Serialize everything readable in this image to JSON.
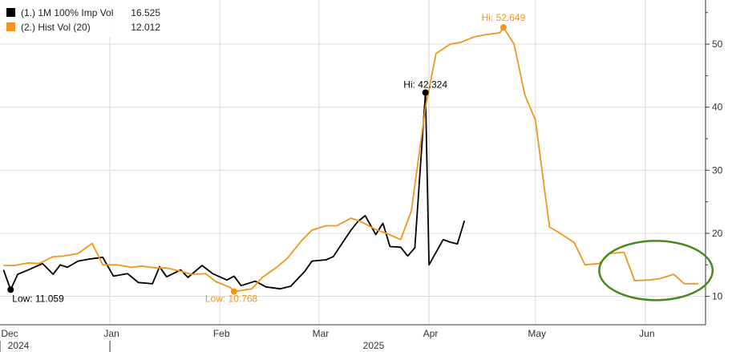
{
  "chart_data": {
    "type": "line",
    "colors": {
      "imp_vol": "#000000",
      "hist_vol": "#f0961e",
      "highlight": "#4a8a1c",
      "grid": "#d8d8d8"
    },
    "legend": {
      "placement": "top-left",
      "entries": [
        {
          "label": "(1.) 1M 100% Imp Vol",
          "value": "16.525",
          "color": "#000000"
        },
        {
          "label": "(2.) Hist Vol (20)",
          "value": "12.012",
          "color": "#f0961e"
        }
      ]
    },
    "ylim": [
      5.5,
      57
    ],
    "yticks": [
      10,
      20,
      30,
      40,
      50
    ],
    "ytick_labels": [
      "10",
      "20",
      "30",
      "40",
      "50"
    ],
    "xlim": [
      "2024-12-01",
      "2025-06-18"
    ],
    "months": [
      {
        "label": "Dec",
        "date": "2024-12-01"
      },
      {
        "label": "Jan",
        "date": "2025-01-01"
      },
      {
        "label": "Feb",
        "date": "2025-02-01"
      },
      {
        "label": "Mar",
        "date": "2025-03-01"
      },
      {
        "label": "Apr",
        "date": "2025-04-01"
      },
      {
        "label": "May",
        "date": "2025-05-01"
      },
      {
        "label": "Jun",
        "date": "2025-06-01"
      }
    ],
    "years": [
      {
        "label": "2024",
        "date": "2024-12-01"
      },
      {
        "label": "2025",
        "date": "2025-01-01"
      }
    ],
    "annotations": [
      {
        "text": "Low: 11.059",
        "series": "imp_vol",
        "date": "2024-12-04",
        "value": 11.059,
        "placement": "below-right"
      },
      {
        "text": "Low: 10.768",
        "series": "hist_vol",
        "date": "2025-02-05",
        "value": 10.768,
        "placement": "below-left"
      },
      {
        "text": "Hi: 42.324",
        "series": "imp_vol",
        "date": "2025-03-31",
        "value": 42.324,
        "placement": "above"
      },
      {
        "text": "Hi: 52.649",
        "series": "hist_vol",
        "date": "2025-04-22",
        "value": 52.649,
        "placement": "above-left"
      }
    ],
    "highlight_ellipse": {
      "center_date": "2025-06-04",
      "center_value": 14.1,
      "rx_days": 16,
      "ry_value": 4.7
    },
    "series": [
      {
        "key": "imp_vol",
        "color": "#000000",
        "points": [
          [
            "2024-12-02",
            14.2
          ],
          [
            "2024-12-04",
            11.059
          ],
          [
            "2024-12-06",
            13.5
          ],
          [
            "2024-12-09",
            14.2
          ],
          [
            "2024-12-11",
            14.7
          ],
          [
            "2024-12-13",
            15.2
          ],
          [
            "2024-12-16",
            13.5
          ],
          [
            "2024-12-18",
            15.0
          ],
          [
            "2024-12-20",
            14.6
          ],
          [
            "2024-12-23",
            15.6
          ],
          [
            "2024-12-26",
            15.9
          ],
          [
            "2024-12-30",
            16.2
          ],
          [
            "2025-01-02",
            13.2
          ],
          [
            "2025-01-06",
            13.6
          ],
          [
            "2025-01-09",
            12.2
          ],
          [
            "2025-01-13",
            12.0
          ],
          [
            "2025-01-15",
            14.7
          ],
          [
            "2025-01-17",
            13.1
          ],
          [
            "2025-01-21",
            14.2
          ],
          [
            "2025-01-23",
            13.0
          ],
          [
            "2025-01-27",
            14.9
          ],
          [
            "2025-01-30",
            13.6
          ],
          [
            "2025-02-03",
            12.6
          ],
          [
            "2025-02-05",
            13.2
          ],
          [
            "2025-02-07",
            11.7
          ],
          [
            "2025-02-11",
            12.4
          ],
          [
            "2025-02-14",
            11.5
          ],
          [
            "2025-02-18",
            11.2
          ],
          [
            "2025-02-21",
            11.6
          ],
          [
            "2025-02-25",
            14.0
          ],
          [
            "2025-02-27",
            15.6
          ],
          [
            "2025-03-03",
            15.8
          ],
          [
            "2025-03-05",
            16.3
          ],
          [
            "2025-03-07",
            18.0
          ],
          [
            "2025-03-10",
            20.5
          ],
          [
            "2025-03-12",
            21.9
          ],
          [
            "2025-03-14",
            22.8
          ],
          [
            "2025-03-17",
            19.8
          ],
          [
            "2025-03-19",
            21.6
          ],
          [
            "2025-03-21",
            17.9
          ],
          [
            "2025-03-24",
            17.8
          ],
          [
            "2025-03-26",
            16.4
          ],
          [
            "2025-03-28",
            17.7
          ],
          [
            "2025-04-01",
            15.0
          ],
          [
            "2025-04-03",
            17.0
          ],
          [
            "2025-04-05",
            19.0
          ],
          [
            "2025-04-07",
            18.6
          ],
          [
            "2025-04-09",
            18.3
          ],
          [
            "2025-04-11",
            22.0
          ],
          [
            "2025-03-31",
            42.324
          ]
        ]
      },
      {
        "key": "hist_vol",
        "color": "#f0961e",
        "points": [
          [
            "2024-12-02",
            14.9
          ],
          [
            "2024-12-05",
            14.9
          ],
          [
            "2024-12-09",
            15.3
          ],
          [
            "2024-12-12",
            15.2
          ],
          [
            "2024-12-16",
            16.3
          ],
          [
            "2024-12-19",
            16.4
          ],
          [
            "2024-12-23",
            16.8
          ],
          [
            "2024-12-27",
            18.4
          ],
          [
            "2024-12-30",
            15.0
          ],
          [
            "2025-01-03",
            15.0
          ],
          [
            "2025-01-07",
            14.6
          ],
          [
            "2025-01-10",
            14.8
          ],
          [
            "2025-01-14",
            14.5
          ],
          [
            "2025-01-17",
            14.5
          ],
          [
            "2025-01-21",
            14.0
          ],
          [
            "2025-01-24",
            13.5
          ],
          [
            "2025-01-28",
            13.6
          ],
          [
            "2025-01-31",
            12.3
          ],
          [
            "2025-02-04",
            11.4
          ],
          [
            "2025-02-05",
            10.768
          ],
          [
            "2025-02-10",
            11.2
          ],
          [
            "2025-02-13",
            13.0
          ],
          [
            "2025-02-17",
            14.6
          ],
          [
            "2025-02-20",
            16.0
          ],
          [
            "2025-02-24",
            18.8
          ],
          [
            "2025-02-27",
            20.5
          ],
          [
            "2025-03-03",
            21.2
          ],
          [
            "2025-03-06",
            21.2
          ],
          [
            "2025-03-10",
            22.4
          ],
          [
            "2025-03-13",
            21.8
          ],
          [
            "2025-03-17",
            20.6
          ],
          [
            "2025-03-20",
            20.0
          ],
          [
            "2025-03-24",
            19.0
          ],
          [
            "2025-03-27",
            23.5
          ],
          [
            "2025-03-31",
            40.0
          ],
          [
            "2025-04-03",
            48.5
          ],
          [
            "2025-04-07",
            50.0
          ],
          [
            "2025-04-10",
            50.3
          ],
          [
            "2025-04-14",
            51.2
          ],
          [
            "2025-04-17",
            51.5
          ],
          [
            "2025-04-21",
            51.8
          ],
          [
            "2025-04-22",
            52.649
          ],
          [
            "2025-04-25",
            50.0
          ],
          [
            "2025-04-28",
            42.0
          ],
          [
            "2025-05-01",
            38.0
          ],
          [
            "2025-05-05",
            21.0
          ],
          [
            "2025-05-08",
            20.0
          ],
          [
            "2025-05-12",
            18.5
          ],
          [
            "2025-05-15",
            15.0
          ],
          [
            "2025-05-19",
            15.2
          ],
          [
            "2025-05-22",
            16.8
          ],
          [
            "2025-05-26",
            17.0
          ],
          [
            "2025-05-29",
            12.5
          ],
          [
            "2025-06-02",
            12.6
          ],
          [
            "2025-06-05",
            12.8
          ],
          [
            "2025-06-09",
            13.5
          ],
          [
            "2025-06-12",
            12.0
          ],
          [
            "2025-06-16",
            12.012
          ]
        ]
      }
    ]
  }
}
